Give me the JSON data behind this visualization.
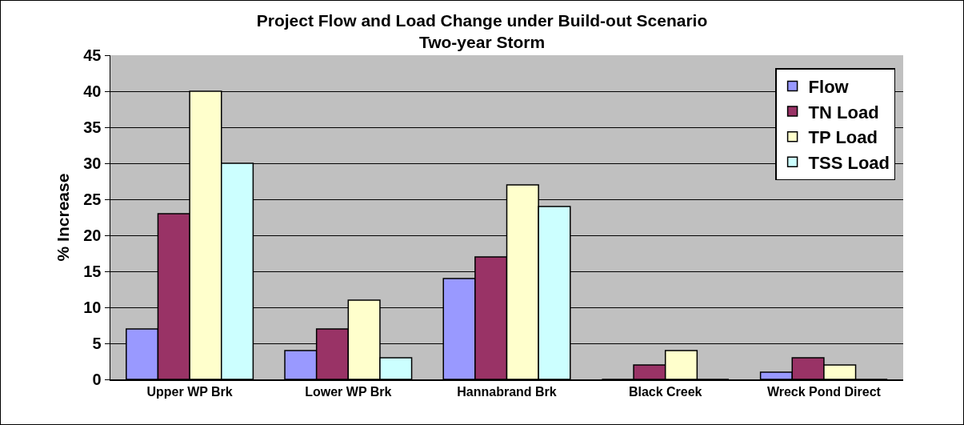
{
  "chart_data": {
    "type": "bar",
    "title": "Project Flow and Load Change under Build-out Scenario",
    "subtitle": "Two-year Storm",
    "ylabel": "% Increase",
    "categories": [
      "Upper WP Brk",
      "Lower WP Brk",
      "Hannabrand Brk",
      "Black Creek",
      "Wreck Pond Direct"
    ],
    "series": [
      {
        "name": "Flow",
        "color": "#9999ff",
        "values": [
          7,
          4,
          14,
          0,
          1
        ]
      },
      {
        "name": "TN Load",
        "color": "#993366",
        "values": [
          23,
          7,
          17,
          2,
          3
        ]
      },
      {
        "name": "TP Load",
        "color": "#ffffcc",
        "values": [
          40,
          11,
          27,
          4,
          2
        ]
      },
      {
        "name": "TSS Load",
        "color": "#ccffff",
        "values": [
          30,
          3,
          24,
          0,
          0
        ]
      }
    ],
    "ylim": [
      0,
      45
    ],
    "yticks": [
      0,
      5,
      10,
      15,
      20,
      25,
      30,
      35,
      40,
      45
    ],
    "grid": "y",
    "legend": "top right"
  }
}
